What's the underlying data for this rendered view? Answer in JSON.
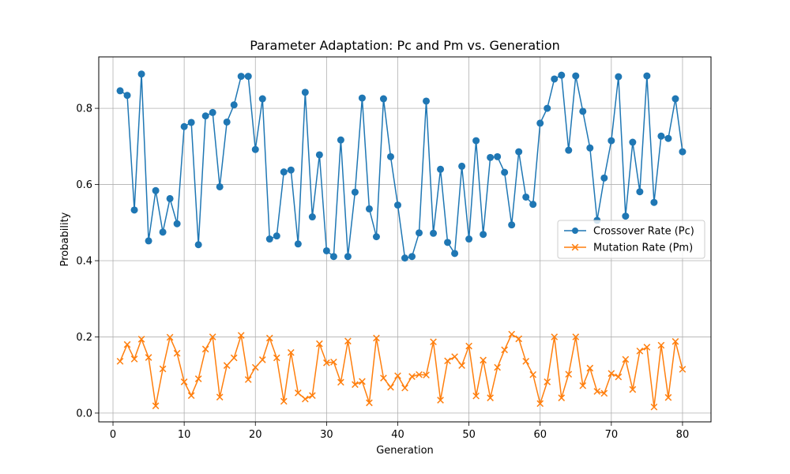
{
  "chart_data": {
    "type": "line",
    "title": "Parameter Adaptation: Pc and Pm vs. Generation",
    "xlabel": "Generation",
    "ylabel": "Probability",
    "xlim": [
      -2,
      84
    ],
    "ylim": [
      -0.023,
      0.935
    ],
    "xticks": [
      0,
      10,
      20,
      30,
      40,
      50,
      60,
      70,
      80
    ],
    "yticks": [
      0.0,
      0.2,
      0.4,
      0.6,
      0.8
    ],
    "grid": true,
    "legend_position": "center-right",
    "x": [
      1,
      2,
      3,
      4,
      5,
      6,
      7,
      8,
      9,
      10,
      11,
      12,
      13,
      14,
      15,
      16,
      17,
      18,
      19,
      20,
      21,
      22,
      23,
      24,
      25,
      26,
      27,
      28,
      29,
      30,
      31,
      32,
      33,
      34,
      35,
      36,
      37,
      38,
      39,
      40,
      41,
      42,
      43,
      44,
      45,
      46,
      47,
      48,
      49,
      50,
      51,
      52,
      53,
      54,
      55,
      56,
      57,
      58,
      59,
      60,
      61,
      62,
      63,
      64,
      65,
      66,
      67,
      68,
      69,
      70,
      71,
      72,
      73,
      74,
      75,
      76,
      77,
      78,
      79,
      80
    ],
    "series": [
      {
        "name": "Crossover Rate (Pc)",
        "color": "#1f77b4",
        "marker": "circle",
        "values": [
          0.846,
          0.834,
          0.533,
          0.89,
          0.452,
          0.584,
          0.475,
          0.563,
          0.497,
          0.752,
          0.763,
          0.442,
          0.78,
          0.789,
          0.594,
          0.764,
          0.809,
          0.884,
          0.884,
          0.692,
          0.825,
          0.457,
          0.465,
          0.633,
          0.638,
          0.444,
          0.842,
          0.515,
          0.678,
          0.426,
          0.411,
          0.717,
          0.411,
          0.58,
          0.827,
          0.536,
          0.463,
          0.825,
          0.673,
          0.546,
          0.407,
          0.411,
          0.473,
          0.819,
          0.472,
          0.64,
          0.448,
          0.419,
          0.648,
          0.457,
          0.715,
          0.469,
          0.671,
          0.673,
          0.632,
          0.494,
          0.686,
          0.567,
          0.548,
          0.761,
          0.8,
          0.877,
          0.887,
          0.69,
          0.885,
          0.792,
          0.696,
          0.506,
          0.617,
          0.715,
          0.883,
          0.517,
          0.711,
          0.581,
          0.885,
          0.553,
          0.727,
          0.721,
          0.825,
          0.686
        ]
      },
      {
        "name": "Mutation Rate (Pm)",
        "color": "#ff7f0e",
        "marker": "x",
        "values": [
          0.136,
          0.18,
          0.142,
          0.194,
          0.146,
          0.019,
          0.116,
          0.199,
          0.157,
          0.082,
          0.046,
          0.09,
          0.168,
          0.2,
          0.042,
          0.125,
          0.145,
          0.204,
          0.088,
          0.12,
          0.14,
          0.197,
          0.145,
          0.031,
          0.159,
          0.053,
          0.037,
          0.046,
          0.182,
          0.132,
          0.134,
          0.081,
          0.189,
          0.075,
          0.083,
          0.027,
          0.197,
          0.092,
          0.068,
          0.098,
          0.066,
          0.096,
          0.101,
          0.1,
          0.187,
          0.034,
          0.137,
          0.148,
          0.125,
          0.176,
          0.045,
          0.139,
          0.04,
          0.12,
          0.166,
          0.207,
          0.195,
          0.136,
          0.101,
          0.025,
          0.082,
          0.2,
          0.04,
          0.102,
          0.2,
          0.072,
          0.118,
          0.057,
          0.052,
          0.104,
          0.095,
          0.141,
          0.062,
          0.163,
          0.173,
          0.016,
          0.178,
          0.041,
          0.188,
          0.115
        ]
      }
    ]
  }
}
